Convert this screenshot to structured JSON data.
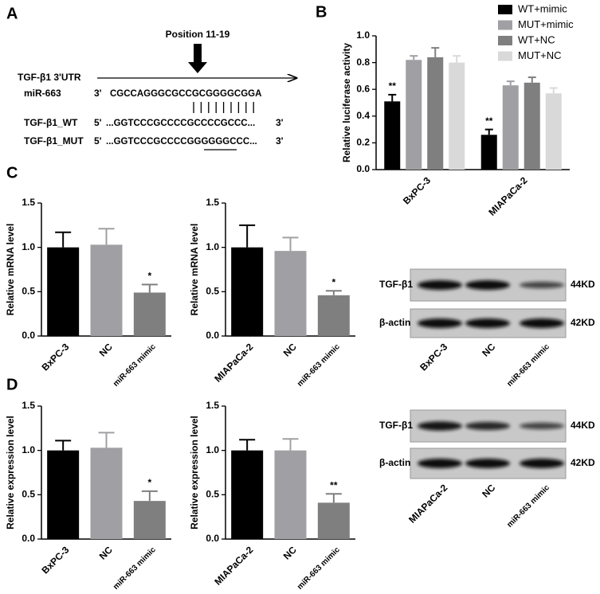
{
  "panels": [
    "A",
    "B",
    "C",
    "D"
  ],
  "sequence_diagram": {
    "position_label": "Position 11-19",
    "utr_label": "TGF-β1 3'UTR",
    "mirna": {
      "label": "miR-663",
      "end": "3'",
      "seq": "CGCCAGGGCGCCGCGGGGCGGA"
    },
    "wt": {
      "label": "TGF-β1_WT",
      "start": "5'",
      "seq": "...GGTCCCGCCCCGCCCCGCCC...",
      "end": "3'"
    },
    "mut": {
      "label": "TGF-β1_MUT",
      "start": "5'",
      "seq": "...GGTCCCGCCCCGGGGGGCCC...",
      "end": "3'"
    }
  },
  "chart_data": [
    {
      "type": "bar",
      "ylabel": "Relative luciferase activity",
      "categories": [
        "BxPC-3",
        "MIAPaCa-2"
      ],
      "ylim": [
        0,
        1.0
      ],
      "yticks": [
        {
          "value": 0,
          "label": "0.0"
        },
        {
          "value": 0.2,
          "label": "0.2"
        },
        {
          "value": 0.4,
          "label": "0.4"
        },
        {
          "value": 0.6,
          "label": "0.6"
        },
        {
          "value": 0.8,
          "label": "0.8"
        },
        {
          "value": 1.0,
          "label": "1.0"
        }
      ],
      "series": [
        {
          "name": "WT+mimic",
          "color": "#000000",
          "values": [
            0.51,
            0.26
          ],
          "errors": [
            0.05,
            0.04
          ],
          "annotations": [
            "**",
            "**"
          ]
        },
        {
          "name": "MUT+mimic",
          "color": "#a0a0a4",
          "values": [
            0.82,
            0.63
          ],
          "errors": [
            0.03,
            0.03
          ]
        },
        {
          "name": "WT+NC",
          "color": "#7f7f7f",
          "values": [
            0.84,
            0.65
          ],
          "errors": [
            0.07,
            0.04
          ]
        },
        {
          "name": "MUT+NC",
          "color": "#d9d9d9",
          "values": [
            0.8,
            0.57
          ],
          "errors": [
            0.05,
            0.04
          ]
        }
      ]
    },
    {
      "type": "bar",
      "ylabel": "Relative mRNA level",
      "categories": [
        "BxPC-3",
        "NC",
        "miR-663 mimic"
      ],
      "values": [
        1.0,
        1.03,
        0.49
      ],
      "errors": [
        0.17,
        0.18,
        0.09
      ],
      "colors": [
        "#000000",
        "#a0a0a4",
        "#7f7f7f"
      ],
      "annotations": [
        null,
        null,
        "*"
      ],
      "ylim": [
        0,
        1.5
      ],
      "yticks": [
        {
          "value": 0,
          "label": "0.0"
        },
        {
          "value": 0.5,
          "label": "0.5"
        },
        {
          "value": 1.0,
          "label": "1.0"
        },
        {
          "value": 1.5,
          "label": "1.5"
        }
      ]
    },
    {
      "type": "bar",
      "ylabel": "Relative mRNA level",
      "categories": [
        "MIAPaCa-2",
        "NC",
        "miR-663 mimic"
      ],
      "values": [
        1.0,
        0.96,
        0.46
      ],
      "errors": [
        0.25,
        0.15,
        0.05
      ],
      "colors": [
        "#000000",
        "#a0a0a4",
        "#7f7f7f"
      ],
      "annotations": [
        null,
        null,
        "*"
      ],
      "ylim": [
        0,
        1.5
      ],
      "yticks": [
        {
          "value": 0,
          "label": "0.0"
        },
        {
          "value": 0.5,
          "label": "0.5"
        },
        {
          "value": 1.0,
          "label": "1.0"
        },
        {
          "value": 1.5,
          "label": "1.5"
        }
      ]
    },
    {
      "type": "bar",
      "ylabel": "Relative expression level",
      "categories": [
        "BxPC-3",
        "NC",
        "miR-663 mimic"
      ],
      "values": [
        1.0,
        1.03,
        0.43
      ],
      "errors": [
        0.11,
        0.17,
        0.11
      ],
      "colors": [
        "#000000",
        "#a0a0a4",
        "#7f7f7f"
      ],
      "annotations": [
        null,
        null,
        "*"
      ],
      "ylim": [
        0,
        1.5
      ],
      "yticks": [
        {
          "value": 0,
          "label": "0.0"
        },
        {
          "value": 0.5,
          "label": "0.5"
        },
        {
          "value": 1.0,
          "label": "1.0"
        },
        {
          "value": 1.5,
          "label": "1.5"
        }
      ]
    },
    {
      "type": "bar",
      "ylabel": "Relative expression level",
      "categories": [
        "MIAPaCa-2",
        "NC",
        "miR-663 mimic"
      ],
      "values": [
        1.0,
        1.0,
        0.41
      ],
      "errors": [
        0.12,
        0.13,
        0.1
      ],
      "colors": [
        "#000000",
        "#a0a0a4",
        "#7f7f7f"
      ],
      "annotations": [
        null,
        null,
        "**"
      ],
      "ylim": [
        0,
        1.5
      ],
      "yticks": [
        {
          "value": 0,
          "label": "0.0"
        },
        {
          "value": 0.5,
          "label": "0.5"
        },
        {
          "value": 1.0,
          "label": "1.0"
        },
        {
          "value": 1.5,
          "label": "1.5"
        }
      ]
    }
  ],
  "blots": [
    {
      "rows": [
        {
          "label": "TGF-β1",
          "size": "44KD"
        },
        {
          "label": "β-actin",
          "size": "42KD"
        }
      ],
      "lanes": [
        "BxPC-3",
        "NC",
        "miR-663 mimic"
      ]
    },
    {
      "rows": [
        {
          "label": "TGF-β1",
          "size": "44KD"
        },
        {
          "label": "β-actin",
          "size": "42KD"
        }
      ],
      "lanes": [
        "MIAPaCa-2",
        "NC",
        "miR-663 mimic"
      ]
    }
  ]
}
